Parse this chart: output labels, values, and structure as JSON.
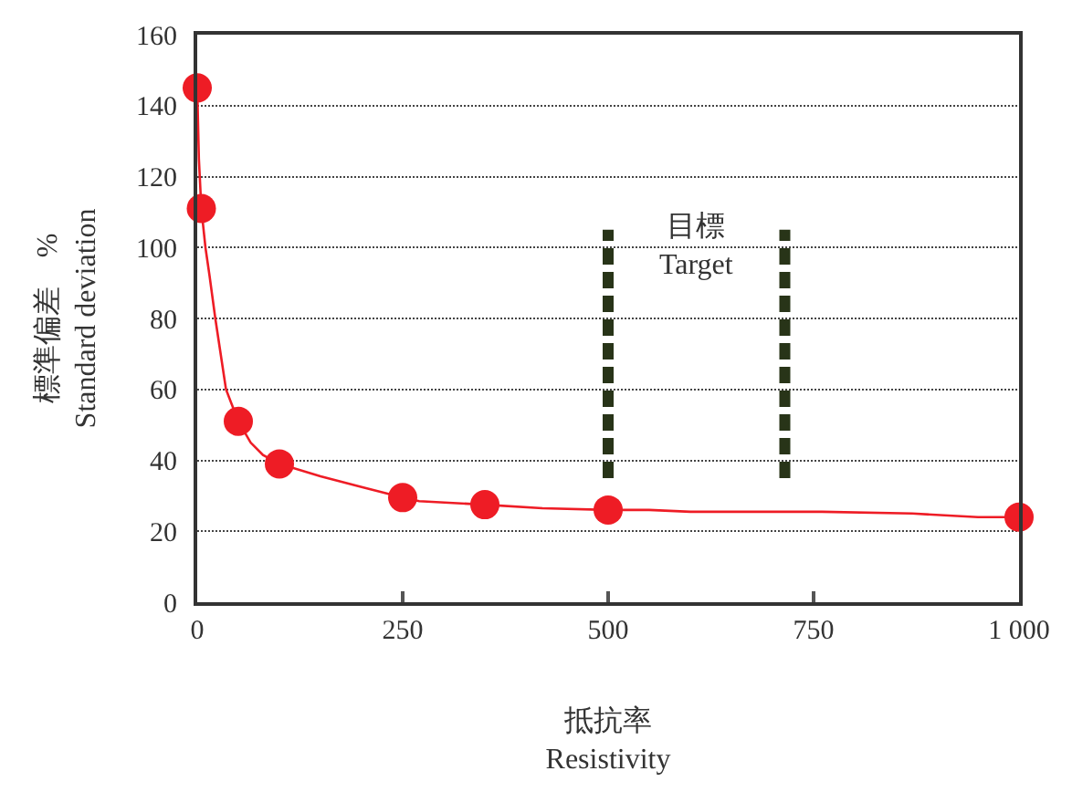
{
  "chart_data": {
    "type": "scatter",
    "xlabel": "抵抗率\nResistivity",
    "ylabel": "標準偏差　%\nStandard deviation",
    "xlim": [
      0,
      1000
    ],
    "xticks": [
      0,
      250,
      500,
      750,
      {
        "value": 1000,
        "label": "1 000"
      }
    ],
    "ylim": [
      0,
      160
    ],
    "yticks": [
      0,
      20,
      40,
      60,
      80,
      100,
      120,
      140,
      160
    ],
    "grid": "y",
    "marker": "circle",
    "series": [
      {
        "type": "line",
        "color": "#ee1c25",
        "line_style": "solid",
        "marker": "none",
        "x": [
          0,
          2,
          5,
          10,
          15,
          22,
          35,
          50,
          65,
          80,
          100,
          150,
          200,
          250,
          270,
          350,
          420,
          500,
          550,
          600,
          700,
          760,
          870,
          950,
          1000
        ],
        "values": [
          145,
          125,
          111,
          100,
          92,
          80,
          60,
          51,
          45,
          41.5,
          39,
          35.5,
          32.5,
          29.5,
          28.5,
          27.5,
          26.5,
          26,
          26,
          25.5,
          25.5,
          25.5,
          25,
          24,
          24
        ]
      },
      {
        "color": "#ee1c25",
        "x": [
          0,
          5,
          50,
          100,
          250,
          350,
          500,
          1000
        ],
        "values": [
          145,
          111,
          51,
          39,
          29.5,
          27.5,
          26,
          24
        ]
      },
      {
        "type": "line",
        "color": "#283418",
        "line_style": "dashed",
        "marker": "none",
        "x": [
          500,
          500
        ],
        "values": [
          35,
          105
        ]
      },
      {
        "type": "line",
        "color": "#283418",
        "line_style": "dashed",
        "marker": "none",
        "x": [
          715,
          715
        ],
        "values": [
          35,
          105
        ]
      }
    ],
    "annotations": [
      "目標\nTarget"
    ]
  }
}
